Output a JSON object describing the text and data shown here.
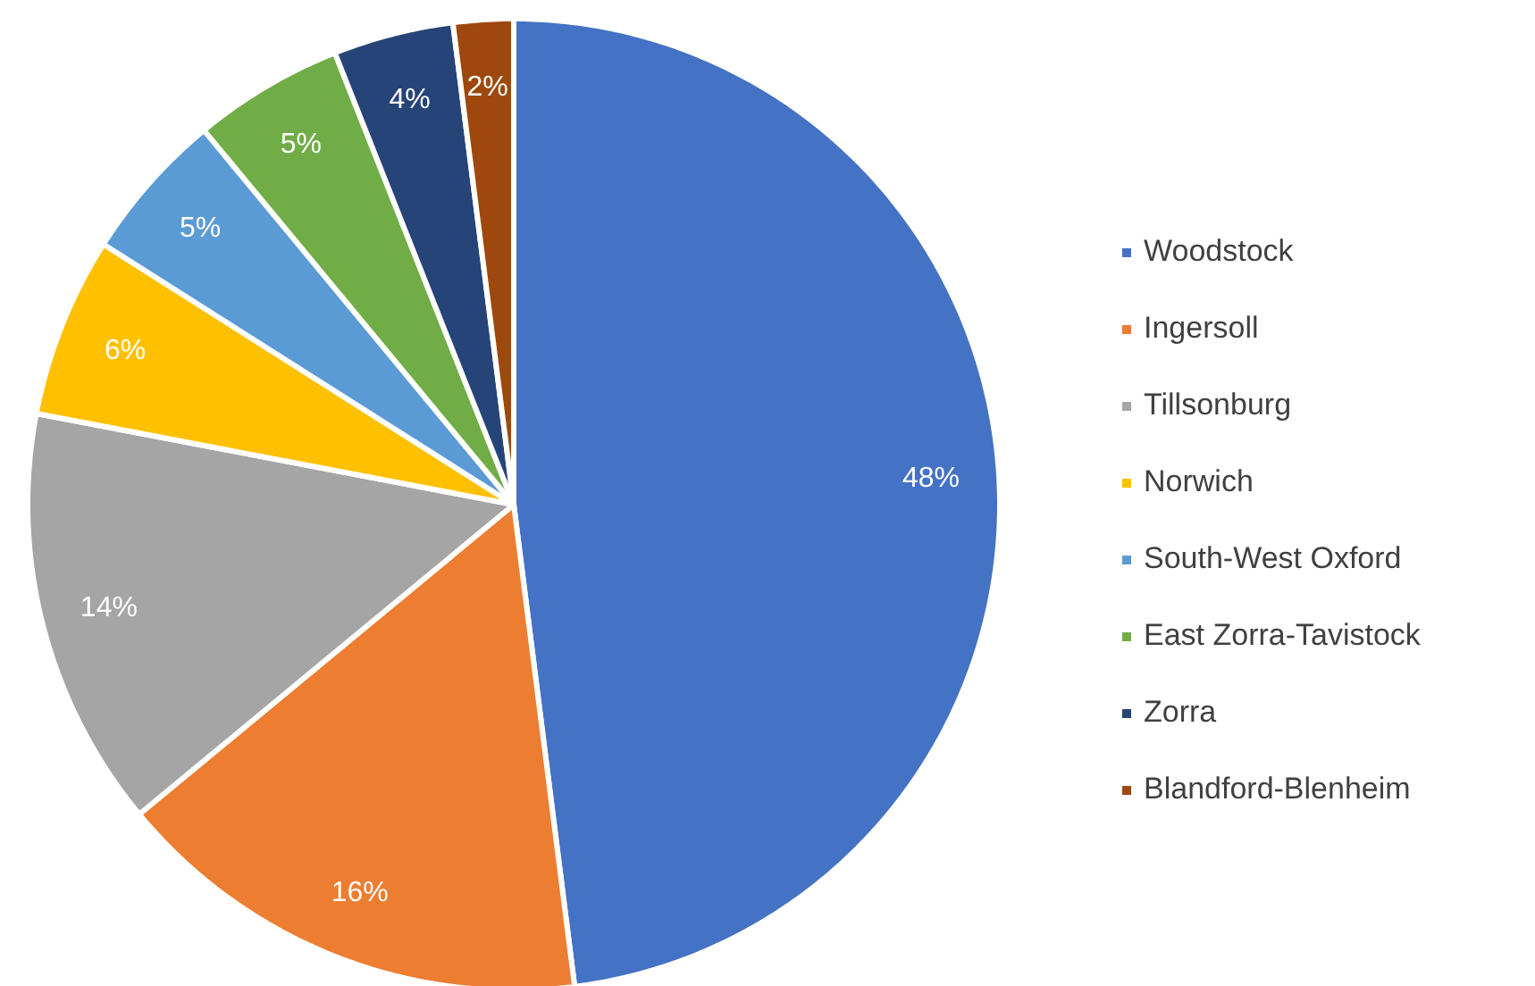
{
  "chart_data": {
    "type": "pie",
    "categories": [
      "Woodstock",
      "Ingersoll",
      "Tillsonburg",
      "Norwich",
      "South-West Oxford",
      "East Zorra-Tavistock",
      "Zorra",
      "Blandford-Blenheim"
    ],
    "values": [
      48,
      16,
      14,
      6,
      5,
      5,
      4,
      2
    ],
    "value_labels": [
      "48%",
      "16%",
      "14%",
      "6%",
      "5%",
      "5%",
      "4%",
      "2%"
    ],
    "colors": [
      "#4472c4",
      "#ed7d31",
      "#a5a5a5",
      "#ffc000",
      "#5b9bd5",
      "#70ad47",
      "#264478",
      "#9e480e"
    ],
    "legend": "right"
  }
}
